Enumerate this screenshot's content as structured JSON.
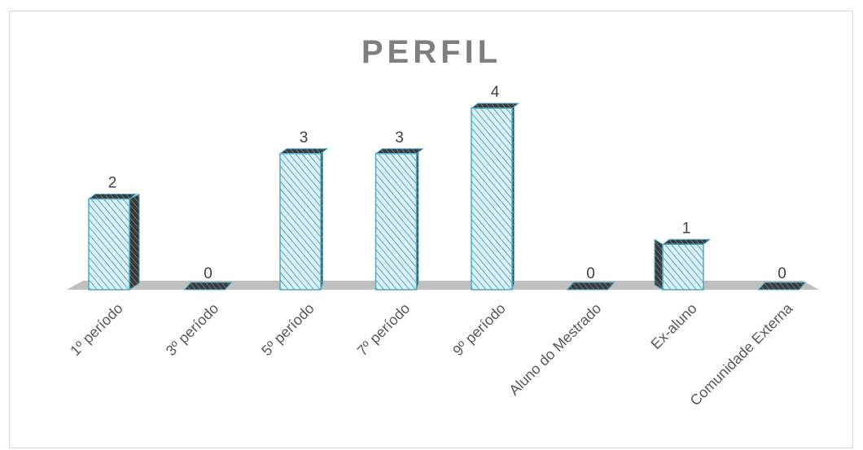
{
  "chart_data": {
    "type": "bar",
    "title": "PERFIL",
    "xlabel": "",
    "ylabel": "",
    "categories": [
      "1º período",
      "3º período",
      "5º período",
      "7º período",
      "9º período",
      "Aluno do Mestrado",
      "Ex-aluno",
      "Comunidade Externa"
    ],
    "values": [
      2,
      0,
      3,
      3,
      4,
      0,
      1,
      0
    ],
    "ylim": [
      0,
      4
    ],
    "grid": false,
    "legend": "none",
    "data_labels": true,
    "style": "3d-hatched",
    "colors": {
      "bar_stroke": "#4bacc6",
      "bar_fill": "#ddf0f6",
      "hatch": "#4bacc6",
      "floor": "#bfbfbf",
      "side_dark": "#3a3a3a",
      "title": "#7f7f7f"
    }
  }
}
